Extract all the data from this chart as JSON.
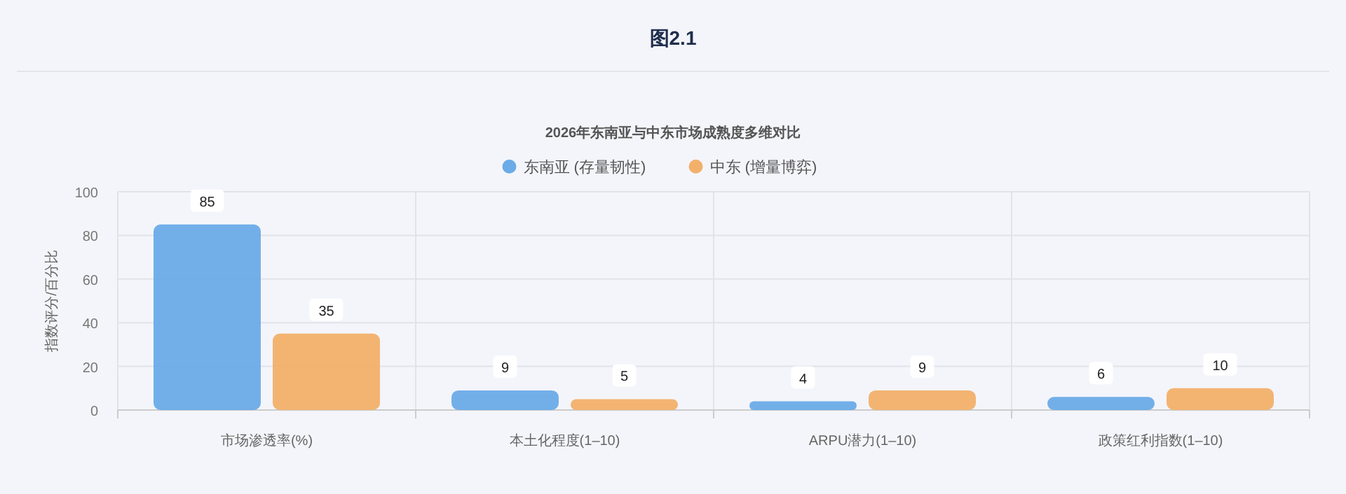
{
  "chart_data": {
    "type": "bar",
    "title": "2026年东南亚与中东市场成熟度多维对比",
    "annotations": [
      "图2.1"
    ],
    "ylabel": "指数评分/百分比",
    "categories": [
      "市场渗透率(%)",
      "本土化程度(1–10)",
      "ARPU潜力(1–10)",
      "政策红利指数(1–10)"
    ],
    "series": [
      {
        "name": "东南亚 (存量韧性)",
        "color": "#6aabe8",
        "values": [
          85,
          9,
          4,
          6
        ]
      },
      {
        "name": "中东 (增量博弈)",
        "color": "#f2b06a",
        "values": [
          35,
          5,
          9,
          10
        ]
      }
    ],
    "ylim": [
      0,
      100
    ],
    "yticks": [
      0,
      20,
      40,
      60,
      80,
      100
    ],
    "grid": true,
    "legend": "top",
    "data_labels": true
  }
}
